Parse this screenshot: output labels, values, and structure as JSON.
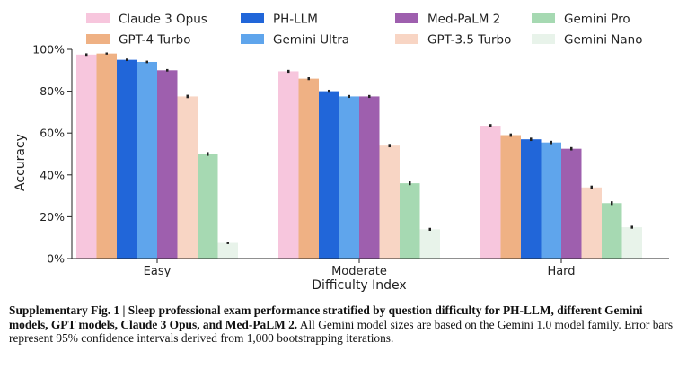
{
  "chart_data": {
    "type": "bar",
    "categories": [
      "Easy",
      "Moderate",
      "Hard"
    ],
    "xlabel": "Difficulty Index",
    "ylabel": "Accuracy",
    "ylim": [
      0,
      100
    ],
    "yticks": [
      "0%",
      "20%",
      "40%",
      "60%",
      "80%",
      "100%"
    ],
    "grid": false,
    "legend_position": "top",
    "series": [
      {
        "name": "Claude 3 Opus",
        "color": "#f7c6dd",
        "values": [
          97.5,
          89.5,
          63.5
        ]
      },
      {
        "name": "GPT-4 Turbo",
        "color": "#efb184",
        "values": [
          98.0,
          86.0,
          59.0
        ]
      },
      {
        "name": "PH-LLM",
        "color": "#2166d9",
        "values": [
          95.0,
          80.0,
          57.0
        ]
      },
      {
        "name": "Gemini Ultra",
        "color": "#5fa5ec",
        "values": [
          94.0,
          77.5,
          55.5
        ]
      },
      {
        "name": "Med-PaLM 2",
        "color": "#9e5fae",
        "values": [
          90.0,
          77.5,
          52.5
        ]
      },
      {
        "name": "GPT-3.5 Turbo",
        "color": "#f8d5c4",
        "values": [
          77.5,
          54.0,
          34.0
        ]
      },
      {
        "name": "Gemini Pro",
        "color": "#a6d9b2",
        "values": [
          50.0,
          36.0,
          26.5
        ]
      },
      {
        "name": "Gemini Nano",
        "color": "#e8f3ea",
        "values": [
          7.5,
          14.0,
          15.0
        ]
      }
    ],
    "error": [
      [
        0.6,
        0.7,
        0.8
      ],
      [
        0.5,
        0.7,
        0.8
      ],
      [
        0.6,
        0.7,
        0.8
      ],
      [
        0.6,
        0.7,
        0.8
      ],
      [
        0.6,
        0.7,
        0.8
      ],
      [
        0.8,
        0.8,
        0.9
      ],
      [
        0.9,
        0.9,
        0.9
      ],
      [
        0.6,
        0.7,
        0.7
      ]
    ]
  },
  "caption": {
    "bold": "Supplementary Fig. 1 | Sleep professional exam performance stratified by question difficulty for PH-LLM, different Gemini models, GPT models, Claude 3 Opus, and Med-PaLM 2.",
    "text": " All Gemini model sizes are based on the Gemini 1.0 model family. Error bars represent 95% confidence intervals derived from 1,000 bootstrapping iterations."
  }
}
